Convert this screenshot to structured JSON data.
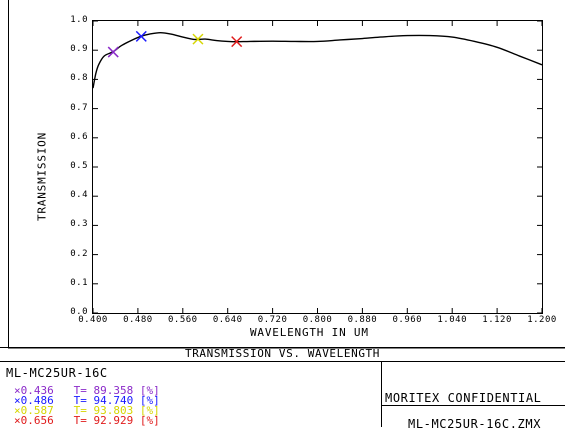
{
  "chart_data": {
    "type": "line",
    "title": "TRANSMISSION VS. WAVELENGTH",
    "xlabel": "WAVELENGTH IN UM",
    "ylabel": "TRANSMISSION",
    "xlim": [
      0.4,
      1.2
    ],
    "ylim": [
      0.0,
      1.0
    ],
    "xticks": [
      "0.400",
      "0.480",
      "0.560",
      "0.640",
      "0.720",
      "0.800",
      "0.880",
      "0.960",
      "1.040",
      "1.120",
      "1.200"
    ],
    "yticks": [
      "0.0",
      "0.1",
      "0.2",
      "0.3",
      "0.4",
      "0.5",
      "0.6",
      "0.7",
      "0.8",
      "0.9",
      "1.0"
    ],
    "grid": false,
    "series": [
      {
        "x": [
          0.4,
          0.405,
          0.41,
          0.42,
          0.436,
          0.45,
          0.47,
          0.486,
          0.5,
          0.52,
          0.54,
          0.56,
          0.58,
          0.6,
          0.62,
          0.64,
          0.656,
          0.68,
          0.72,
          0.76,
          0.8,
          0.84,
          0.88,
          0.92,
          0.96,
          1.0,
          1.04,
          1.08,
          1.12,
          1.16,
          1.2
        ],
        "y": [
          0.77,
          0.82,
          0.85,
          0.88,
          0.895,
          0.915,
          0.935,
          0.948,
          0.955,
          0.96,
          0.955,
          0.945,
          0.937,
          0.938,
          0.933,
          0.93,
          0.929,
          0.93,
          0.931,
          0.93,
          0.93,
          0.935,
          0.94,
          0.946,
          0.95,
          0.95,
          0.945,
          0.93,
          0.91,
          0.88,
          0.85
        ]
      }
    ],
    "markers": [
      {
        "x": 0.436,
        "y": 0.89358,
        "color": "#8b2bc9"
      },
      {
        "x": 0.486,
        "y": 0.9474,
        "color": "#1a1aff"
      },
      {
        "x": 0.587,
        "y": 0.93803,
        "color": "#d6d600"
      },
      {
        "x": 0.656,
        "y": 0.92929,
        "color": "#e01b1b"
      }
    ]
  },
  "footer": {
    "lens_name": "ML-MC25UR-16C",
    "legend": [
      {
        "text": "×0.436   T= 89.358 [%]",
        "color": "#8b2bc9"
      },
      {
        "text": "×0.486   T= 94.740 [%]",
        "color": "#1a1aff"
      },
      {
        "text": "×0.587   T= 93.803 [%]",
        "color": "#d6d600"
      },
      {
        "text": "×0.656   T= 92.929 [%]",
        "color": "#e01b1b"
      }
    ],
    "confidential": "MORITEX CONFIDENTIAL",
    "filename": "ML-MC25UR-16C.ZMX"
  }
}
